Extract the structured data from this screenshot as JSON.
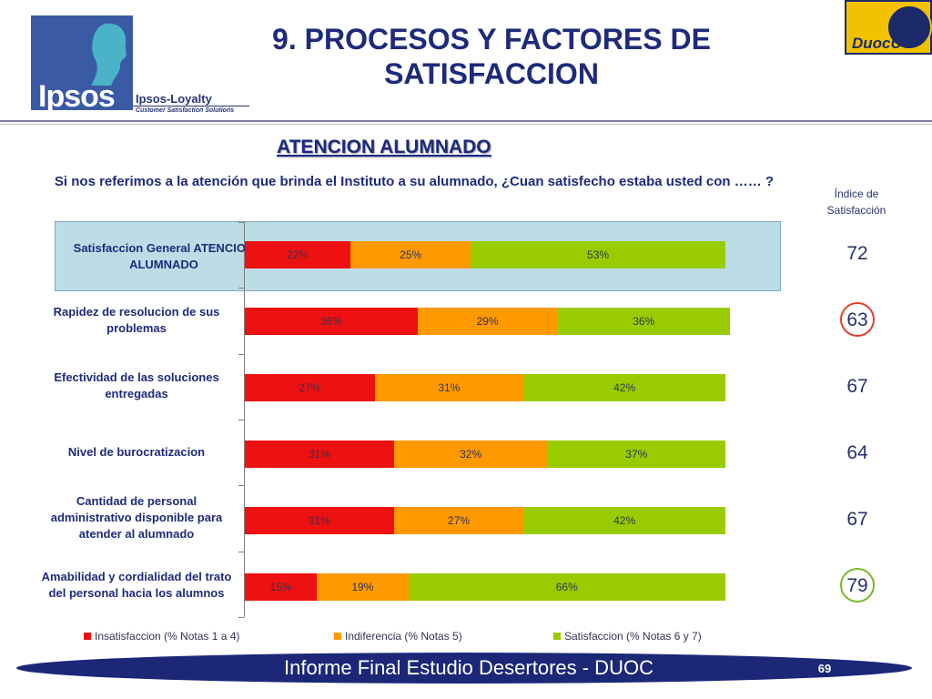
{
  "header": {
    "title": "9. PROCESOS Y FACTORES DE SATISFACCION",
    "logo_text": "Ipsos",
    "loyalty_text": "Ipsos-Loyalty",
    "loyalty_sub": "Customer Satisfaction Solutions",
    "duoc_text": "DuocUC"
  },
  "subtitle": "ATENCION ALUMNADO",
  "question": "Si nos referimos a la atención que brinda el Instituto a su alumnado, ¿Cuan satisfecho estaba usted con …… ?",
  "index_header": "Índice de Satisfacción",
  "colors": {
    "insatisfaccion": "#ee1111",
    "indiferencia": "#ff9900",
    "satisfaccion": "#99cc00",
    "navy": "#1e2a7a",
    "highlight": "#bcdde6"
  },
  "chart_data": {
    "type": "bar",
    "orientation": "horizontal",
    "stacked": true,
    "categories": [
      "Satisfaccion General ATENCION ALUMNADO",
      "Rapidez de resolucion de sus problemas",
      "Efectividad de las soluciones entregadas",
      "Nivel de burocratizacion",
      "Cantidad de personal administrativo disponible para atender al alumnado",
      "Amabilidad y cordialidad del trato del personal hacia los alumnos"
    ],
    "series": [
      {
        "name": "Insatisfaccion (% Notas 1 a 4)",
        "values": [
          22,
          36,
          27,
          31,
          31,
          15
        ],
        "labels": [
          "22%",
          "36%",
          "27%",
          "31%",
          "31%",
          "15%"
        ],
        "color": "#ee1111"
      },
      {
        "name": "Indiferencia (% Notas 5)",
        "values": [
          25,
          29,
          31,
          32,
          27,
          19
        ],
        "labels": [
          "25%",
          "29%",
          "31%",
          "32%",
          "27%",
          "19%"
        ],
        "color": "#ff9900"
      },
      {
        "name": "Satisfaccion (% Notas 6 y 7)",
        "values": [
          53,
          36,
          42,
          37,
          42,
          66
        ],
        "labels": [
          "53%",
          "36%",
          "42%",
          "37%",
          "42%",
          "66%"
        ],
        "color": "#99cc00"
      }
    ],
    "index_values": [
      "72",
      "63",
      "67",
      "64",
      "67",
      "79"
    ],
    "highlighted_category": 0,
    "circled": [
      {
        "row": 1,
        "color": "#e0402a"
      },
      {
        "row": 5,
        "color": "#7ab828"
      }
    ],
    "legend_position": "bottom"
  },
  "footer": {
    "text": "Informe Final Estudio Desertores - DUOC",
    "page": "69"
  }
}
